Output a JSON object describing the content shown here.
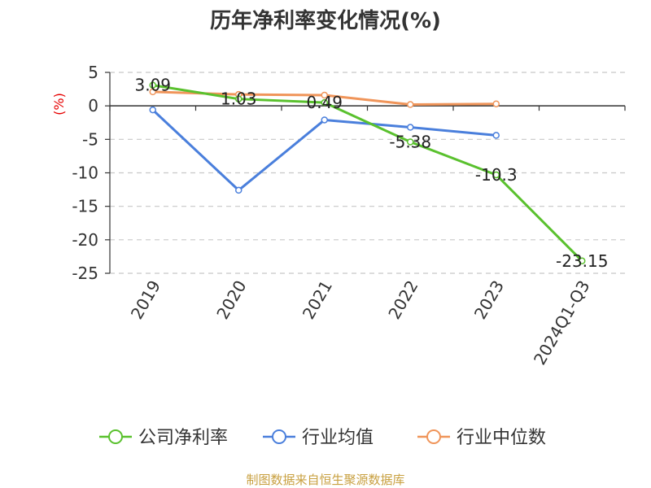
{
  "chart_data": {
    "type": "line",
    "title": "历年净利率变化情况(%)",
    "ylabel": "(%)",
    "xlabel": "",
    "categories": [
      "2019",
      "2020",
      "2021",
      "2022",
      "2023",
      "2024Q1-Q3"
    ],
    "ylim": [
      -25,
      5
    ],
    "yticks": [
      5,
      0,
      -5,
      -10,
      -15,
      -20,
      -25
    ],
    "grid": true,
    "legend_position": "bottom",
    "series": [
      {
        "name": "公司净利率",
        "color": "#5ac12e",
        "values": [
          3.09,
          1.03,
          0.49,
          -5.38,
          -10.3,
          -23.15
        ],
        "labels": [
          "3.09",
          "1.03",
          "0.49",
          "-5.38",
          "-10.3",
          "-23.15"
        ]
      },
      {
        "name": "行业均值",
        "color": "#4a7fdc",
        "values": [
          -0.6,
          -12.6,
          -2.1,
          -3.2,
          -4.4,
          null
        ]
      },
      {
        "name": "行业中位数",
        "color": "#f0955a",
        "values": [
          2.1,
          1.7,
          1.6,
          0.2,
          0.3,
          null
        ]
      }
    ]
  },
  "source": "制图数据来自恒生聚源数据库"
}
